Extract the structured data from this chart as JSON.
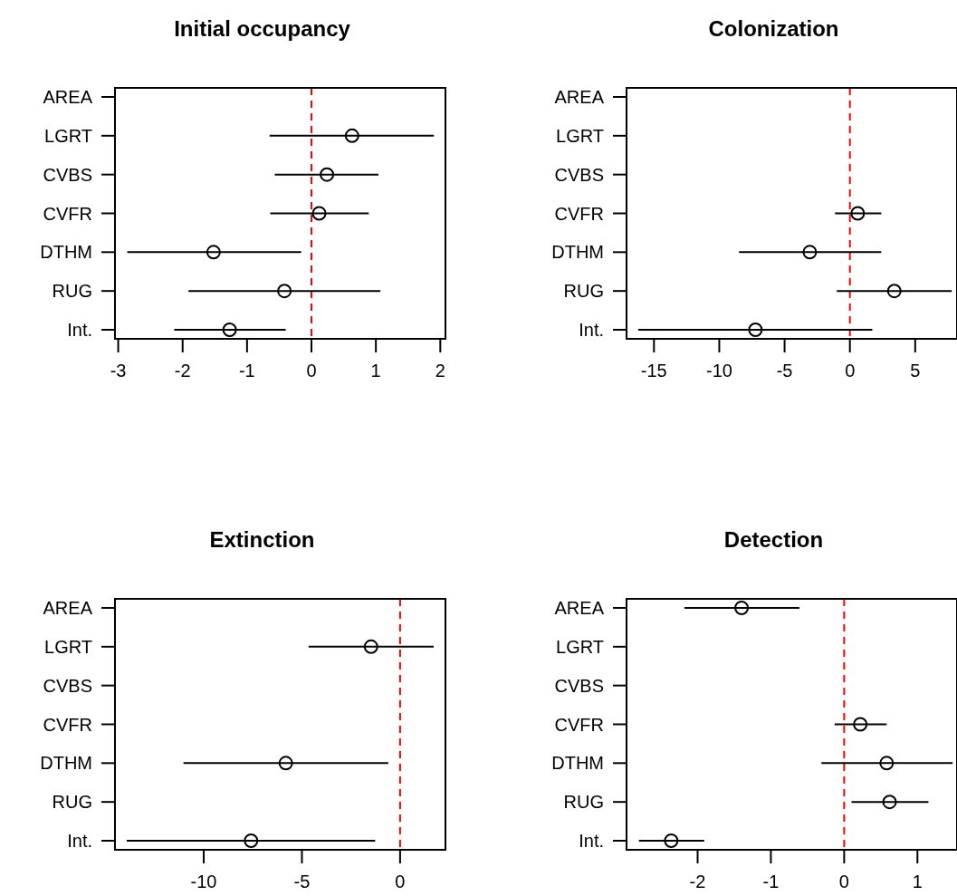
{
  "chart_data": [
    {
      "type": "scatter",
      "title": "Initial occupancy",
      "orientation": "horizontal",
      "marker": "circle",
      "categories": [
        "AREA",
        "LGRT",
        "CVBS",
        "CVFR",
        "DTHM",
        "RUG",
        "Int."
      ],
      "values": [
        null,
        0.63,
        0.24,
        0.12,
        -1.52,
        -0.42,
        -1.27
      ],
      "errors": [
        null,
        [
          -0.65,
          1.9
        ],
        [
          -0.57,
          1.04
        ],
        [
          -0.64,
          0.89
        ],
        [
          -2.86,
          -0.16
        ],
        [
          -1.91,
          1.07
        ],
        [
          -2.13,
          -0.4
        ]
      ],
      "xlim": [
        -3.05,
        2.08
      ],
      "xticks": [
        -3,
        -2,
        -1,
        0,
        1,
        2
      ],
      "ref_lines": [
        {
          "axis": "x",
          "value": 0,
          "color": "#ff0000",
          "line_style": "dashed"
        }
      ]
    },
    {
      "type": "scatter",
      "title": "Colonization",
      "orientation": "horizontal",
      "marker": "circle",
      "categories": [
        "AREA",
        "LGRT",
        "CVBS",
        "CVFR",
        "DTHM",
        "RUG",
        "Int."
      ],
      "values": [
        null,
        null,
        null,
        0.6,
        -3.07,
        3.4,
        -7.23
      ],
      "errors": [
        null,
        null,
        null,
        [
          -1.14,
          2.4
        ],
        [
          -8.49,
          2.4
        ],
        [
          -1.0,
          7.8
        ],
        [
          -16.2,
          1.72
        ]
      ],
      "xlim": [
        -17.1,
        8.2
      ],
      "xticks": [
        -15,
        -10,
        -5,
        0,
        5
      ],
      "ref_lines": [
        {
          "axis": "x",
          "value": 0,
          "color": "#ff0000",
          "line_style": "dashed"
        }
      ]
    },
    {
      "type": "scatter",
      "title": "Extinction",
      "orientation": "horizontal",
      "marker": "circle",
      "categories": [
        "AREA",
        "LGRT",
        "CVBS",
        "CVFR",
        "DTHM",
        "RUG",
        "Int."
      ],
      "values": [
        null,
        -1.48,
        null,
        null,
        -5.82,
        null,
        -7.59
      ],
      "errors": [
        null,
        [
          -4.66,
          1.71
        ],
        null,
        null,
        [
          -11.03,
          -0.6
        ],
        null,
        [
          -13.92,
          -1.27
        ]
      ],
      "xlim": [
        -14.52,
        2.31
      ],
      "xticks": [
        -10,
        -5,
        0
      ],
      "ref_lines": [
        {
          "axis": "x",
          "value": 0,
          "color": "#ff0000",
          "line_style": "dashed"
        }
      ]
    },
    {
      "type": "scatter",
      "title": "Detection",
      "orientation": "horizontal",
      "marker": "circle",
      "categories": [
        "AREA",
        "LGRT",
        "CVBS",
        "CVFR",
        "DTHM",
        "RUG",
        "Int."
      ],
      "values": [
        -1.4,
        null,
        null,
        0.22,
        0.58,
        0.62,
        -2.36
      ],
      "errors": [
        [
          -2.18,
          -0.61
        ],
        null,
        null,
        [
          -0.13,
          0.58
        ],
        [
          -0.31,
          1.48
        ],
        [
          0.1,
          1.15
        ],
        [
          -2.8,
          -1.91
        ]
      ],
      "xlim": [
        -2.97,
        1.54
      ],
      "xticks": [
        -2,
        -1,
        0,
        1
      ],
      "ref_lines": [
        {
          "axis": "x",
          "value": 0,
          "color": "#ff0000",
          "line_style": "dashed"
        }
      ]
    }
  ]
}
